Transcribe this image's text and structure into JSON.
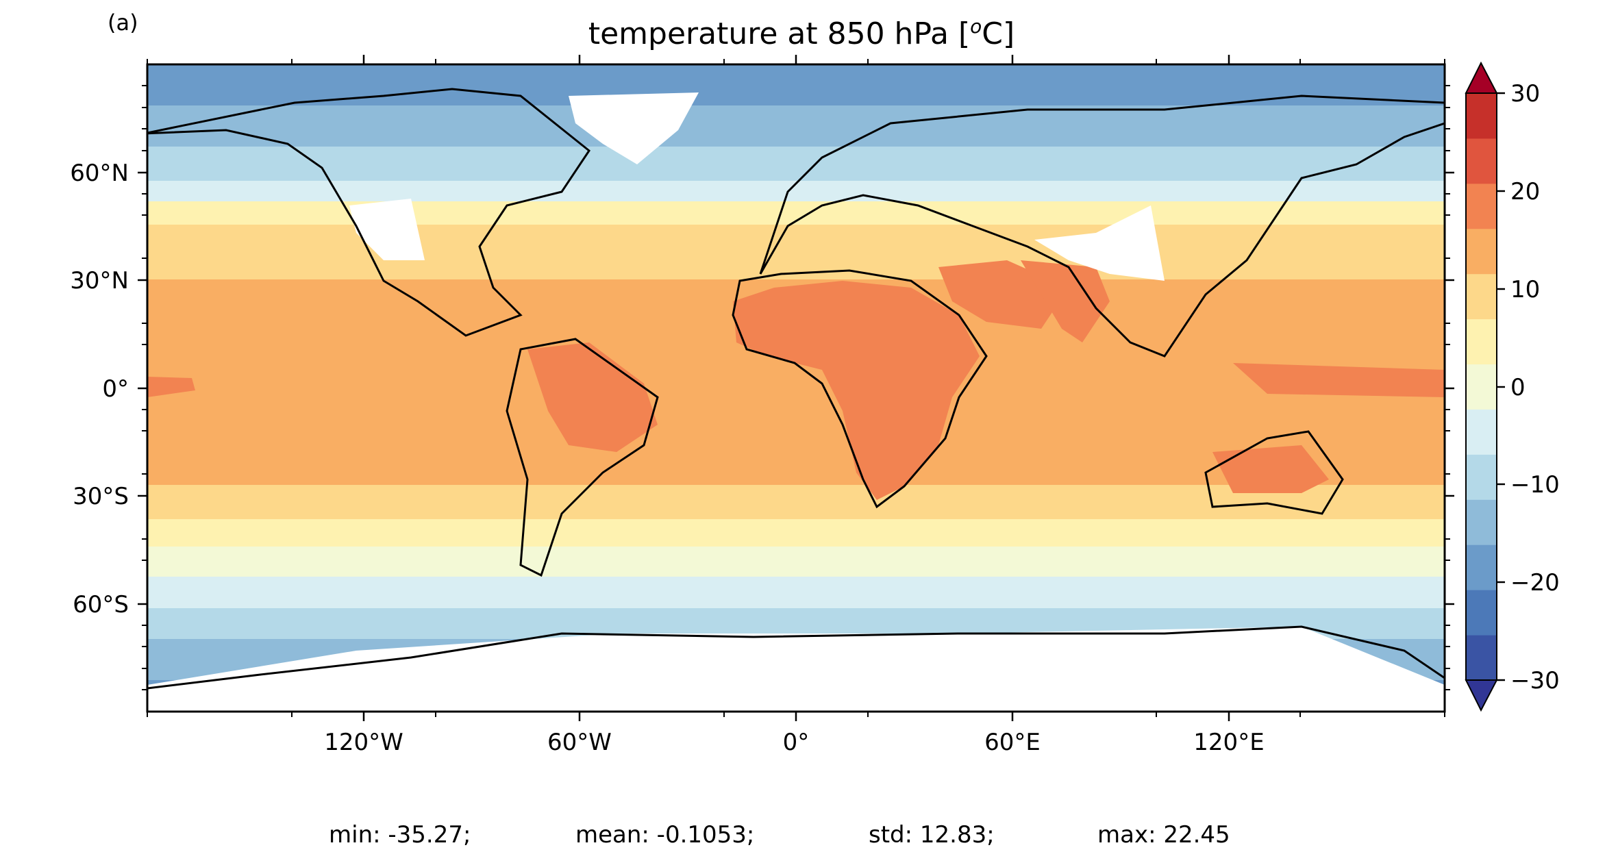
{
  "panel_label": "(a)",
  "title_main": "temperature at 850 hPa [",
  "title_sup": "o",
  "title_end": "C]",
  "lat_ticks": [
    "60°N",
    "30°N",
    "0°",
    "30°S",
    "60°S"
  ],
  "lon_ticks": [
    "120°W",
    "60°W",
    "0°",
    "60°E",
    "120°E"
  ],
  "colorbar": {
    "levels": [
      -30,
      -25,
      -20,
      -15,
      -10,
      -5,
      0,
      5,
      10,
      15,
      20,
      25,
      30
    ],
    "tick_labels": [
      "30",
      "20",
      "10",
      "0",
      "−10",
      "−20",
      "−30"
    ],
    "colors": [
      "#3a54a4",
      "#4c79b8",
      "#6b9bc9",
      "#8fbbd9",
      "#b4d9e8",
      "#d9eef3",
      "#f3f9d6",
      "#fef2b0",
      "#fdd88a",
      "#f9ae63",
      "#f28351",
      "#e0553e",
      "#c6302a"
    ],
    "extend_low_color": "#313695",
    "extend_high_color": "#a50026"
  },
  "stats": {
    "min": "min: -35.27;",
    "mean": "mean: -0.1053;",
    "std": "std: 12.83;",
    "max": "max: 22.45"
  },
  "map_colors": {
    "polar_deep": "#4c79b8",
    "subpolar": "#8fbbd9",
    "cool": "#b4d9e8",
    "mid_cool": "#d9eef3",
    "temperate": "#fef2b0",
    "warm": "#fdd88a",
    "tropical_sea": "#f9ae63",
    "hot_land": "#f28351",
    "no_data": "#ffffff",
    "coastline": "#000000"
  }
}
